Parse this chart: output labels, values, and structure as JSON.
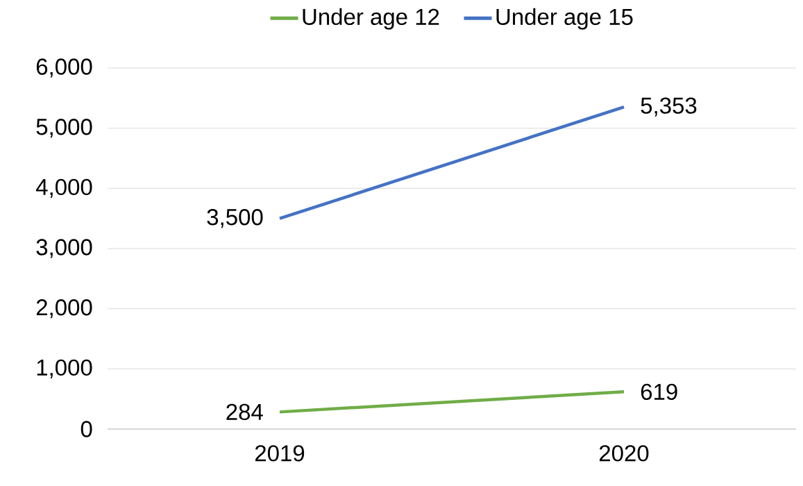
{
  "chart_data": {
    "type": "line",
    "categories": [
      "2019",
      "2020"
    ],
    "series": [
      {
        "name": "Under age 12",
        "color": "#70ad47",
        "values": [
          284,
          619
        ],
        "value_labels": [
          "284",
          "619"
        ]
      },
      {
        "name": "Under age 15",
        "color": "#4472c4",
        "values": [
          3500,
          5353
        ],
        "value_labels": [
          "3,500",
          "5,353"
        ]
      }
    ],
    "ylim": [
      0,
      6000
    ],
    "yticks": [
      0,
      {
        "value": 1000,
        "label": "1,000"
      },
      {
        "value": 2000,
        "label": "2,000"
      },
      {
        "value": 3000,
        "label": "3,000"
      },
      {
        "value": 4000,
        "label": "4,000"
      },
      {
        "value": 5000,
        "label": "5,000"
      },
      {
        "value": 6000,
        "label": "6,000"
      }
    ],
    "grid": "y",
    "legend": "top",
    "marker": "none",
    "line_style": "solid"
  }
}
